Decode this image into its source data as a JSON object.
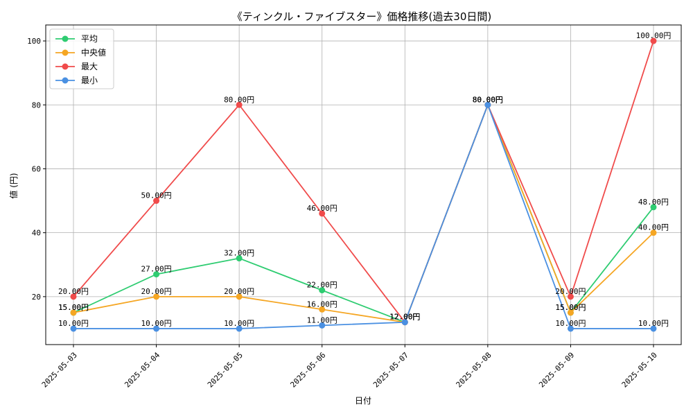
{
  "chart_data": {
    "type": "line",
    "title": "《ティンクル・ファイブスター》価格推移(過去30日間)",
    "xlabel": "日付",
    "ylabel": "値 (円)",
    "ylim": [
      5,
      105
    ],
    "yticks": [
      20,
      40,
      60,
      80,
      100
    ],
    "grid": true,
    "legend_position": "top-left",
    "value_suffix": "円",
    "categories": [
      "2025-05-03",
      "2025-05-04",
      "2025-05-05",
      "2025-05-06",
      "2025-05-07",
      "2025-05-08",
      "2025-05-09",
      "2025-05-10"
    ],
    "series": [
      {
        "name": "平均",
        "color": "#2ecc71",
        "values": [
          15,
          27,
          32,
          22,
          12,
          80,
          15,
          48
        ]
      },
      {
        "name": "中央値",
        "color": "#f5a623",
        "values": [
          15,
          20,
          20,
          16,
          12,
          80,
          15,
          40
        ]
      },
      {
        "name": "最大",
        "color": "#f04b4b",
        "values": [
          20,
          50,
          80,
          46,
          12,
          80,
          20,
          100
        ]
      },
      {
        "name": "最小",
        "color": "#4a90e2",
        "values": [
          10,
          10,
          10,
          11,
          12,
          80,
          10,
          10
        ]
      }
    ]
  }
}
